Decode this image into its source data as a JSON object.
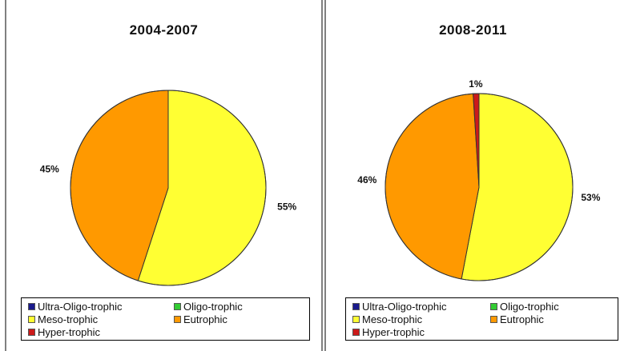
{
  "colors": {
    "Ultra-Oligo-trophic": "#1a1a8c",
    "Oligo-trophic": "#33cc33",
    "Meso-trophic": "#ffff33",
    "Eutrophic": "#ff9900",
    "Hyper-trophic": "#cc1a1a"
  },
  "chart_data": [
    {
      "type": "pie",
      "title": "2004-2007",
      "legend_placement": "bottom",
      "categories": [
        "Ultra-Oligo-trophic",
        "Oligo-trophic",
        "Meso-trophic",
        "Eutrophic",
        "Hyper-trophic"
      ],
      "values": [
        0,
        0,
        55,
        45,
        0
      ],
      "labels": [
        {
          "category": "Meso-trophic",
          "text": "55%"
        },
        {
          "category": "Eutrophic",
          "text": "45%"
        }
      ]
    },
    {
      "type": "pie",
      "title": "2008-2011",
      "legend_placement": "bottom",
      "categories": [
        "Ultra-Oligo-trophic",
        "Oligo-trophic",
        "Meso-trophic",
        "Eutrophic",
        "Hyper-trophic"
      ],
      "values": [
        0,
        0,
        53,
        46,
        1
      ],
      "labels": [
        {
          "category": "Meso-trophic",
          "text": "53%"
        },
        {
          "category": "Eutrophic",
          "text": "46%"
        },
        {
          "category": "Hyper-trophic",
          "text": "1%"
        }
      ]
    }
  ]
}
